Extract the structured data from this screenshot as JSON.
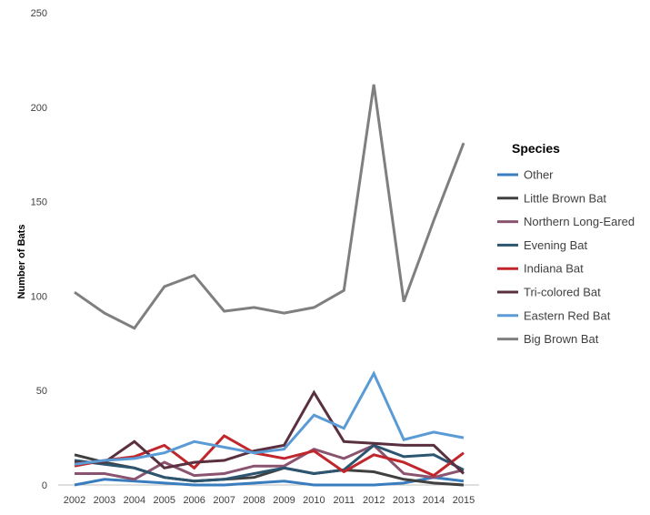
{
  "chart_data": {
    "type": "line",
    "title": "",
    "xlabel": "",
    "ylabel": "Number of Bats",
    "ylim": [
      0,
      250
    ],
    "yticks": [
      "0",
      "50",
      "100",
      "150",
      "200",
      "250"
    ],
    "x": [
      "2002",
      "2003",
      "2004",
      "2005",
      "2006",
      "2007",
      "2008",
      "2009",
      "2010",
      "2011",
      "2012",
      "2013",
      "2014",
      "2015"
    ],
    "grid": false,
    "legend": {
      "title": "Species",
      "position": "right"
    },
    "series": [
      {
        "name": "Other",
        "color": "#3a7dbf",
        "values": [
          0,
          3,
          2,
          1,
          0,
          0,
          1,
          2,
          0,
          0,
          0,
          1,
          4,
          2
        ]
      },
      {
        "name": "Little Brown Bat",
        "color": "#404040",
        "values": [
          16,
          12,
          9,
          4,
          2,
          3,
          4,
          9,
          6,
          8,
          7,
          3,
          1,
          0
        ]
      },
      {
        "name": "Northern Long-Eared",
        "color": "#8a5470",
        "values": [
          6,
          6,
          3,
          12,
          5,
          6,
          10,
          10,
          19,
          14,
          21,
          6,
          4,
          8
        ]
      },
      {
        "name": "Evening Bat",
        "color": "#2c5570",
        "values": [
          13,
          11,
          9,
          4,
          2,
          3,
          6,
          9,
          6,
          8,
          21,
          15,
          16,
          8
        ]
      },
      {
        "name": "Indiana Bat",
        "color": "#c0262c",
        "values": [
          10,
          13,
          15,
          21,
          9,
          26,
          17,
          14,
          18,
          7,
          16,
          12,
          5,
          17
        ]
      },
      {
        "name": "Tri-colored Bat",
        "color": "#5a3040",
        "values": [
          12,
          12,
          23,
          9,
          12,
          13,
          18,
          21,
          49,
          23,
          22,
          21,
          21,
          6
        ]
      },
      {
        "name": "Eastern Red Bat",
        "color": "#5b9bd5",
        "values": [
          11,
          13,
          14,
          17,
          23,
          20,
          17,
          19,
          37,
          30,
          59,
          24,
          28,
          25
        ]
      },
      {
        "name": "Big Brown Bat",
        "color": "#7f7f7f",
        "values": [
          102,
          91,
          83,
          105,
          111,
          92,
          94,
          91,
          94,
          103,
          212,
          97,
          140,
          181
        ]
      }
    ]
  }
}
